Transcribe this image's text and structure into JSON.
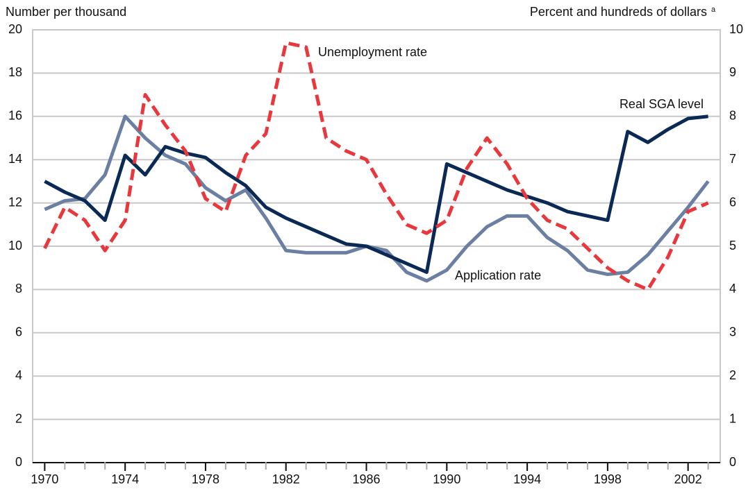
{
  "chart_data": {
    "type": "line",
    "y_label": "Number per thousand",
    "y2_label": "Percent and hundreds of dollars",
    "y2_label_note": "a",
    "x": [
      1970,
      1971,
      1972,
      1973,
      1974,
      1975,
      1976,
      1977,
      1978,
      1979,
      1980,
      1981,
      1982,
      1983,
      1984,
      1985,
      1986,
      1987,
      1988,
      1989,
      1990,
      1991,
      1992,
      1993,
      1994,
      1995,
      1996,
      1997,
      1998,
      1999,
      2000,
      2001,
      2002,
      2003
    ],
    "xlim": [
      1969.4,
      2003.6
    ],
    "xticks": [
      1970,
      1974,
      1978,
      1982,
      1986,
      1990,
      1994,
      1998,
      2002
    ],
    "ylim": [
      0,
      20
    ],
    "yticks": [
      0,
      2,
      4,
      6,
      8,
      10,
      12,
      14,
      16,
      18,
      20
    ],
    "y2lim": [
      0,
      10
    ],
    "y2ticks": [
      0,
      1,
      2,
      3,
      4,
      5,
      6,
      7,
      8,
      9,
      10
    ],
    "grid": true,
    "series": [
      {
        "name": "Application rate",
        "color": "#6b7fa3",
        "dashed": false,
        "values": [
          11.7,
          12.1,
          12.2,
          13.3,
          16.0,
          15.0,
          14.2,
          13.8,
          12.7,
          12.1,
          12.6,
          11.3,
          9.8,
          9.7,
          9.7,
          9.7,
          10.0,
          9.8,
          8.8,
          8.4,
          8.9,
          10.0,
          10.9,
          11.4,
          11.4,
          10.4,
          9.8,
          8.9,
          8.7,
          8.8,
          9.6,
          10.7,
          11.8,
          13.0
        ]
      },
      {
        "name": "Real SGA level",
        "color": "#0a2a55",
        "dashed": false,
        "axis": "y2",
        "values": [
          6.5,
          6.25,
          6.05,
          5.6,
          7.1,
          6.65,
          7.3,
          7.15,
          7.05,
          6.7,
          6.4,
          5.9,
          5.65,
          5.45,
          5.25,
          5.05,
          5.0,
          4.8,
          4.6,
          4.4,
          6.9,
          6.7,
          6.5,
          6.3,
          6.15,
          6.0,
          5.8,
          5.7,
          5.6,
          7.65,
          7.4,
          7.7,
          7.95,
          8.0
        ]
      },
      {
        "name": "Unemployment rate",
        "color": "#e8383d",
        "dashed": true,
        "axis": "y2",
        "values": [
          4.95,
          5.9,
          5.6,
          4.9,
          5.6,
          8.5,
          7.8,
          7.2,
          6.1,
          5.8,
          7.1,
          7.6,
          9.7,
          9.6,
          7.5,
          7.2,
          7.0,
          6.2,
          5.5,
          5.3,
          5.6,
          6.8,
          7.5,
          6.9,
          6.1,
          5.6,
          5.4,
          4.95,
          4.5,
          4.2,
          4.0,
          4.75,
          5.8,
          6.0
        ]
      }
    ]
  }
}
